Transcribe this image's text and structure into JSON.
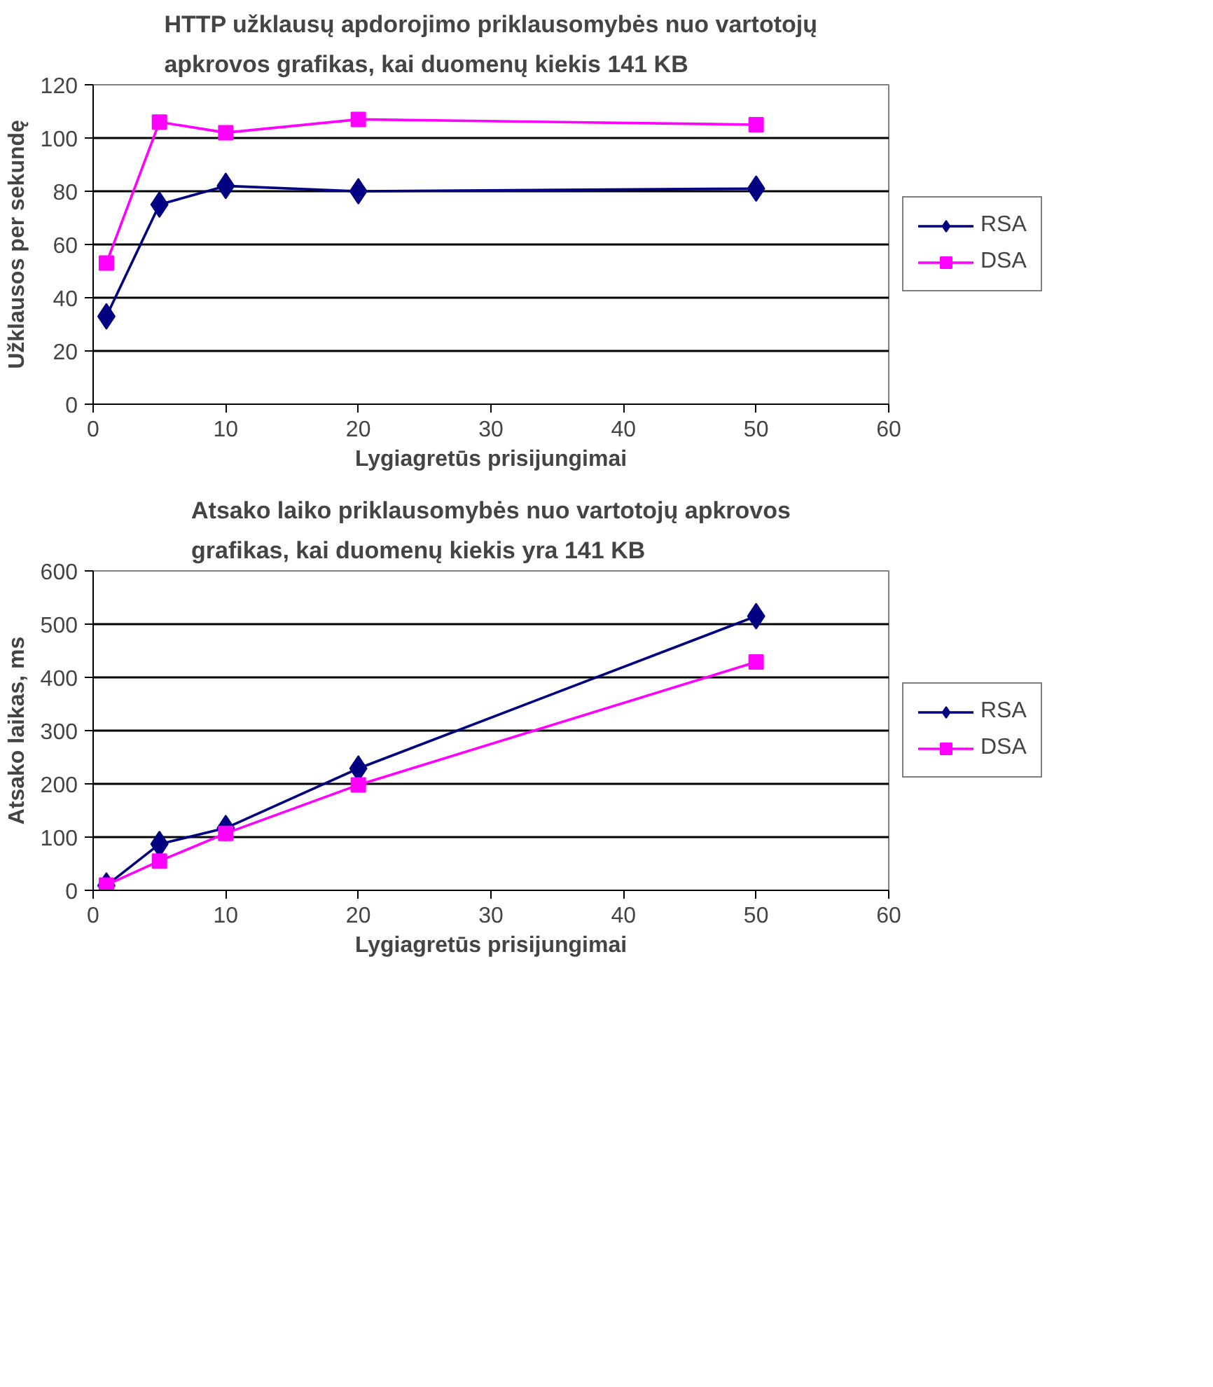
{
  "chart_data": [
    {
      "type": "line",
      "title": "HTTP užklausų apdorojimo priklausomybės nuo vartotojų apkrovos grafikas, kai duomenų kiekis 141 KB",
      "xlabel": "Lygiagretūs prisijungimai",
      "ylabel": "Užklausos per sekundę",
      "x": [
        1,
        5,
        10,
        20,
        50
      ],
      "series": [
        {
          "name": "RSA",
          "color": "#000080",
          "marker": "diamond",
          "values": [
            33,
            75,
            82,
            80,
            81
          ]
        },
        {
          "name": "DSA",
          "color": "#ff00ff",
          "marker": "square",
          "values": [
            53,
            106,
            102,
            107,
            105
          ]
        }
      ],
      "xlim": [
        0,
        60
      ],
      "xticks": [
        0,
        10,
        20,
        30,
        40,
        50,
        60
      ],
      "ylim": [
        0,
        120
      ],
      "yticks": [
        0,
        20,
        40,
        60,
        80,
        100,
        120
      ],
      "grid": "y",
      "legend": "right"
    },
    {
      "type": "line",
      "title": "Atsako laiko priklausomybės nuo vartotojų apkrovos grafikas, kai duomenų kiekis yra 141 KB",
      "xlabel": "Lygiagretūs prisijungimai",
      "ylabel": "Atsako laikas, ms",
      "x": [
        1,
        5,
        10,
        20,
        50
      ],
      "series": [
        {
          "name": "RSA",
          "color": "#000080",
          "marker": "diamond",
          "values": [
            9,
            87,
            117,
            229,
            515
          ]
        },
        {
          "name": "DSA",
          "color": "#ff00ff",
          "marker": "square",
          "values": [
            10,
            55,
            107,
            198,
            429
          ]
        }
      ],
      "xlim": [
        0,
        60
      ],
      "xticks": [
        0,
        10,
        20,
        30,
        40,
        50,
        60
      ],
      "ylim": [
        0,
        600
      ],
      "yticks": [
        0,
        100,
        200,
        300,
        400,
        500,
        600
      ],
      "grid": "y",
      "legend": "right"
    }
  ]
}
